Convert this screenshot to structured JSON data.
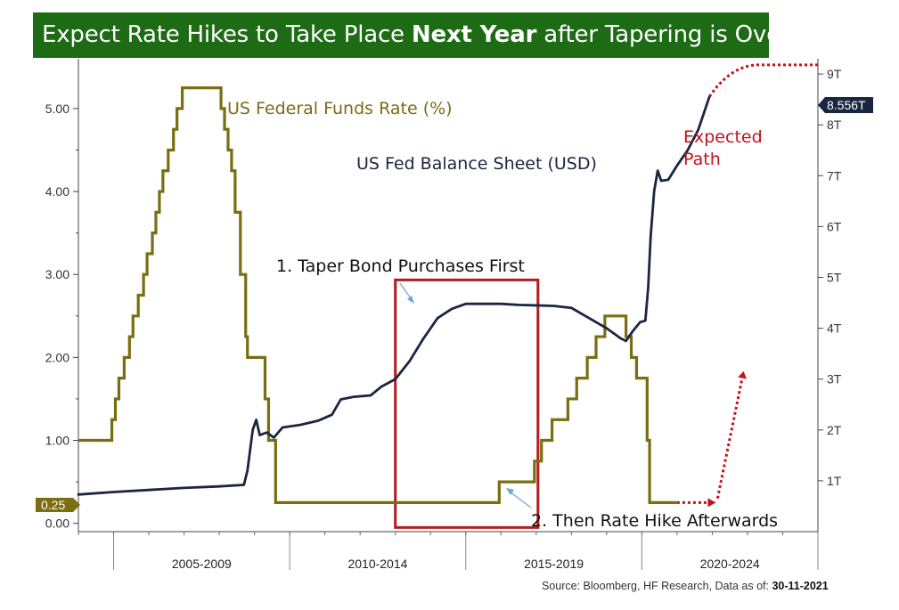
{
  "banner": {
    "title_prefix": "Expect Rate Hikes to Take Place ",
    "title_bold": "Next Year",
    "title_suffix": " after Tapering is Over",
    "color": "#1e6b15"
  },
  "source": {
    "prefix": "Source: Bloomberg, HF Research, Data as of: ",
    "date": "30-11-2021"
  },
  "colors": {
    "fed_funds": "#7a6d12",
    "balance_sheet": "#1a2640",
    "highlight_box": "#b51a1f",
    "expected_path": "#c0141c",
    "annotation_arrow": "#6fa4d6"
  },
  "chart_data": {
    "type": "line",
    "xlim": [
      2004.0,
      2025.0
    ],
    "x_period_labels": [
      "2005-2009",
      "2010-2014",
      "2015-2019",
      "2020-2024"
    ],
    "y_left": {
      "ylim": [
        -0.1,
        5.6
      ],
      "ticks": [
        0.0,
        1.0,
        2.0,
        3.0,
        4.0,
        5.0
      ],
      "tick_labels": [
        "0.00",
        "1.00",
        "2.00",
        "3.00",
        "4.00",
        "5.00"
      ]
    },
    "y_right": {
      "ylim": [
        0.0,
        9.3
      ],
      "ticks": [
        1,
        2,
        3,
        4,
        5,
        6,
        7,
        8,
        9
      ],
      "tick_labels": [
        "1T",
        "2T",
        "3T",
        "4T",
        "5T",
        "6T",
        "7T",
        "8T",
        "9T"
      ]
    },
    "series": [
      {
        "name": "US Federal Funds Rate (%)",
        "axis": "left",
        "step": true,
        "points": [
          [
            2004.0,
            1.0
          ],
          [
            2004.95,
            1.0
          ],
          [
            2004.95,
            1.25
          ],
          [
            2005.05,
            1.5
          ],
          [
            2005.15,
            1.75
          ],
          [
            2005.3,
            2.0
          ],
          [
            2005.45,
            2.25
          ],
          [
            2005.55,
            2.5
          ],
          [
            2005.7,
            2.75
          ],
          [
            2005.85,
            3.0
          ],
          [
            2005.95,
            3.25
          ],
          [
            2006.1,
            3.5
          ],
          [
            2006.2,
            3.75
          ],
          [
            2006.3,
            4.0
          ],
          [
            2006.4,
            4.25
          ],
          [
            2006.55,
            4.5
          ],
          [
            2006.7,
            4.75
          ],
          [
            2006.8,
            5.0
          ],
          [
            2006.95,
            5.25
          ],
          [
            2008.05,
            5.25
          ],
          [
            2008.05,
            5.0
          ],
          [
            2008.15,
            4.75
          ],
          [
            2008.25,
            4.5
          ],
          [
            2008.35,
            4.25
          ],
          [
            2008.45,
            3.75
          ],
          [
            2008.6,
            3.0
          ],
          [
            2008.75,
            2.25
          ],
          [
            2008.8,
            2.0
          ],
          [
            2009.3,
            2.0
          ],
          [
            2009.3,
            1.5
          ],
          [
            2009.4,
            1.0
          ],
          [
            2009.6,
            0.25
          ],
          [
            2015.95,
            0.25
          ],
          [
            2015.95,
            0.5
          ],
          [
            2016.95,
            0.5
          ],
          [
            2016.95,
            0.75
          ],
          [
            2017.15,
            0.75
          ],
          [
            2017.15,
            1.0
          ],
          [
            2017.45,
            1.25
          ],
          [
            2017.9,
            1.5
          ],
          [
            2018.15,
            1.75
          ],
          [
            2018.45,
            2.0
          ],
          [
            2018.7,
            2.25
          ],
          [
            2018.95,
            2.5
          ],
          [
            2019.55,
            2.5
          ],
          [
            2019.55,
            2.25
          ],
          [
            2019.7,
            2.0
          ],
          [
            2019.85,
            1.75
          ],
          [
            2020.15,
            1.75
          ],
          [
            2020.15,
            1.0
          ],
          [
            2020.22,
            0.25
          ],
          [
            2021.0,
            0.25
          ]
        ]
      },
      {
        "name": "US Fed Balance Sheet (USD)",
        "axis": "right",
        "unit": "T",
        "points": [
          [
            2004.0,
            0.73
          ],
          [
            2005.0,
            0.78
          ],
          [
            2006.0,
            0.82
          ],
          [
            2007.0,
            0.86
          ],
          [
            2008.0,
            0.89
          ],
          [
            2008.7,
            0.92
          ],
          [
            2008.8,
            1.2
          ],
          [
            2008.95,
            2.0
          ],
          [
            2009.05,
            2.2
          ],
          [
            2009.15,
            1.9
          ],
          [
            2009.35,
            1.95
          ],
          [
            2009.55,
            1.85
          ],
          [
            2009.8,
            2.05
          ],
          [
            2010.3,
            2.1
          ],
          [
            2010.8,
            2.18
          ],
          [
            2011.2,
            2.3
          ],
          [
            2011.45,
            2.6
          ],
          [
            2011.8,
            2.65
          ],
          [
            2012.3,
            2.68
          ],
          [
            2012.6,
            2.85
          ],
          [
            2013.0,
            3.0
          ],
          [
            2013.4,
            3.35
          ],
          [
            2013.8,
            3.8
          ],
          [
            2014.2,
            4.2
          ],
          [
            2014.6,
            4.38
          ],
          [
            2015.0,
            4.48
          ],
          [
            2016.0,
            4.48
          ],
          [
            2016.5,
            4.46
          ],
          [
            2017.0,
            4.45
          ],
          [
            2017.5,
            4.44
          ],
          [
            2018.0,
            4.4
          ],
          [
            2018.5,
            4.2
          ],
          [
            2019.0,
            4.0
          ],
          [
            2019.4,
            3.8
          ],
          [
            2019.55,
            3.75
          ],
          [
            2019.75,
            3.95
          ],
          [
            2019.95,
            4.12
          ],
          [
            2020.1,
            4.15
          ],
          [
            2020.18,
            4.8
          ],
          [
            2020.25,
            5.8
          ],
          [
            2020.35,
            6.7
          ],
          [
            2020.45,
            7.1
          ],
          [
            2020.55,
            6.9
          ],
          [
            2020.75,
            6.92
          ],
          [
            2021.0,
            7.2
          ],
          [
            2021.3,
            7.5
          ],
          [
            2021.6,
            7.9
          ],
          [
            2021.92,
            8.556
          ]
        ]
      }
    ],
    "last_value_badges": {
      "left": "0.25",
      "right": "8.556T"
    },
    "annotations": {
      "fed_funds_label": "US Federal Funds Rate (%)",
      "balance_sheet_label": "US Fed Balance Sheet (USD)",
      "taper_label": "1. Taper Bond Purchases First",
      "hike_label": "2. Then Rate Hike Afterwards",
      "expected_path_label_line1": "Expected",
      "expected_path_label_line2": "Path"
    },
    "highlight_box_x_range": [
      2013.0,
      2017.05
    ],
    "expected_paths": {
      "balance_sheet": [
        [
          2021.92,
          8.556
        ],
        [
          2022.5,
          9.15
        ],
        [
          2025.0,
          9.18
        ]
      ],
      "fed_funds": [
        [
          2021.0,
          0.25
        ],
        [
          2021.9,
          0.25
        ],
        [
          2022.15,
          0.3
        ],
        [
          2022.85,
          1.75
        ]
      ]
    }
  }
}
